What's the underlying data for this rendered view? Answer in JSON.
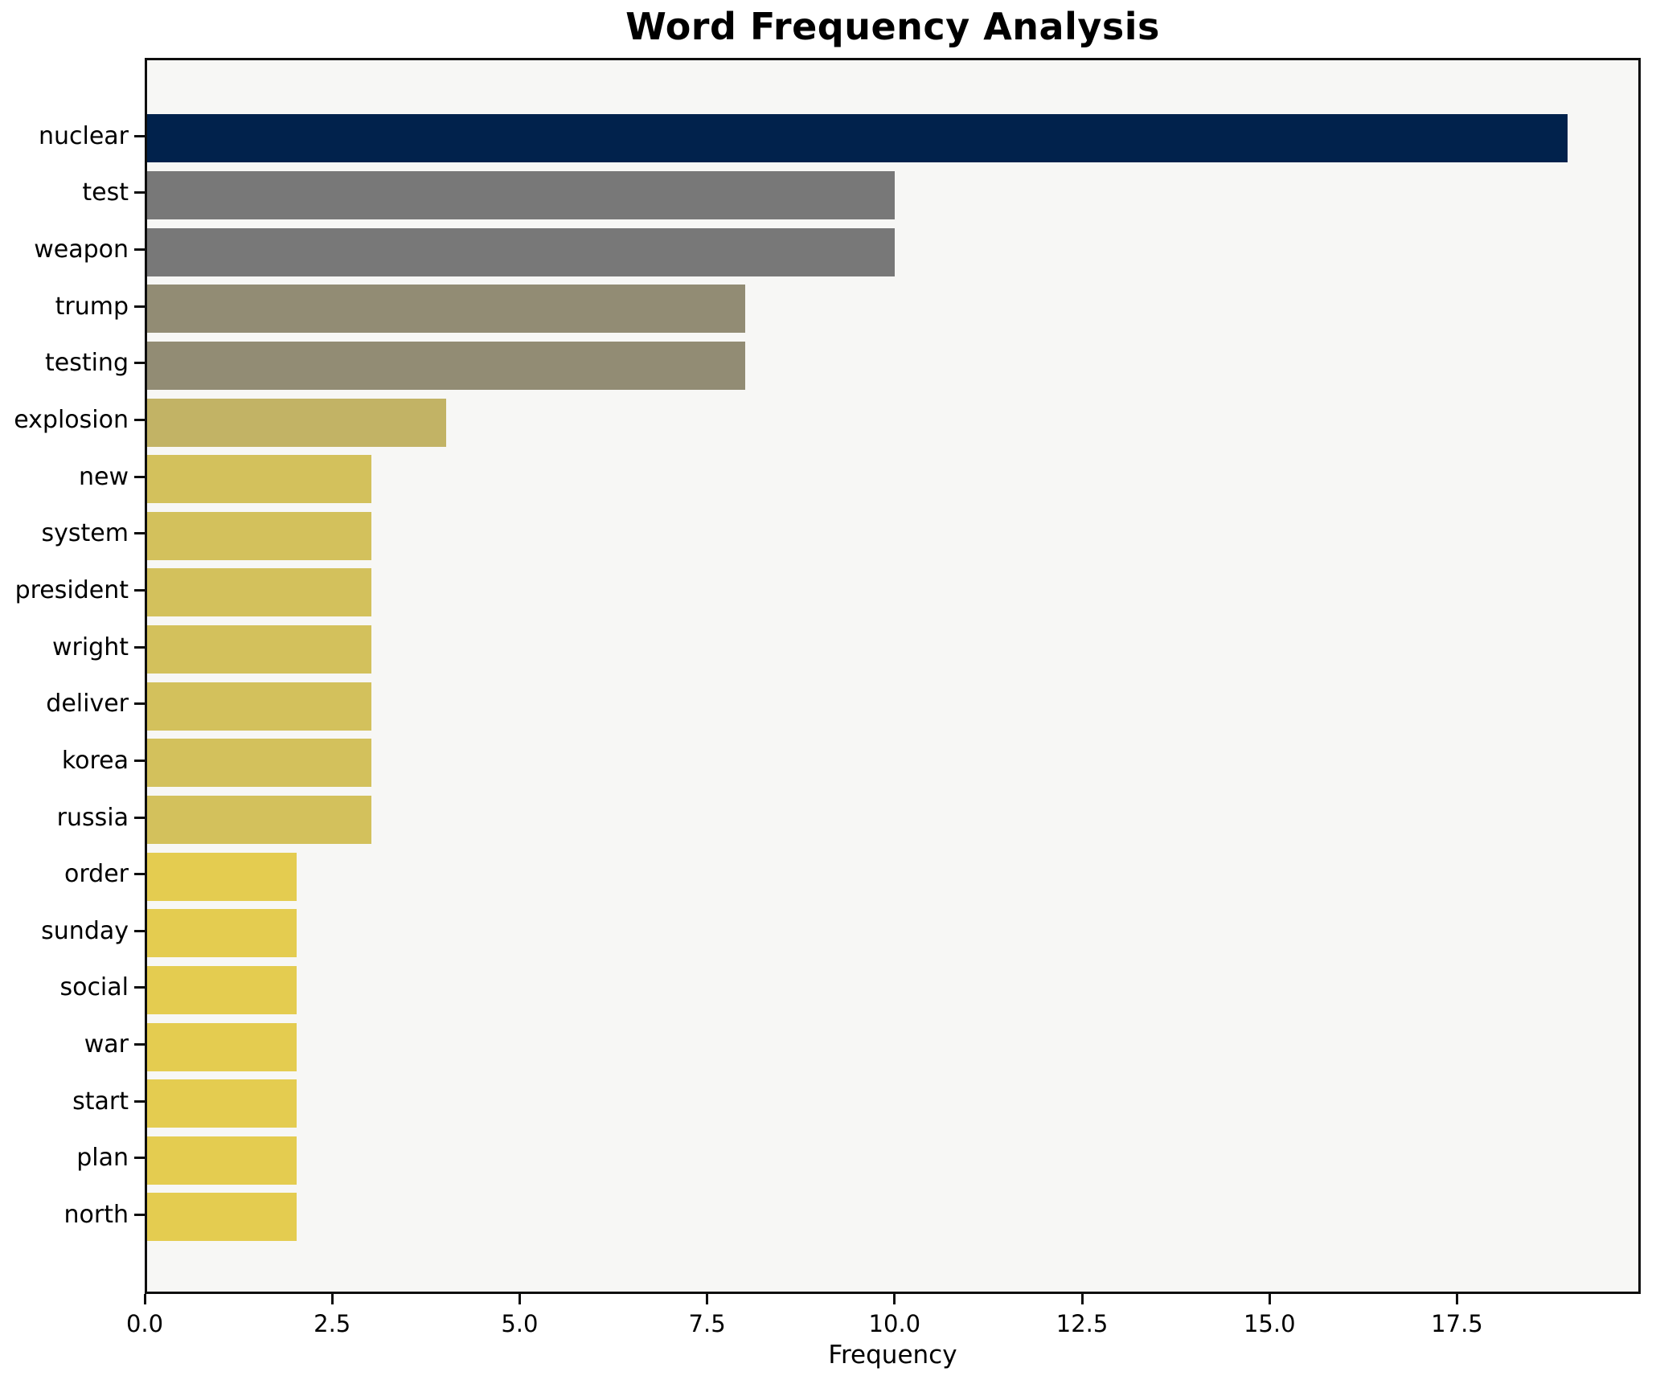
{
  "chart_data": {
    "type": "bar",
    "orientation": "horizontal",
    "title": "Word Frequency Analysis",
    "xlabel": "Frequency",
    "ylabel": "",
    "categories": [
      "nuclear",
      "test",
      "weapon",
      "trump",
      "testing",
      "explosion",
      "new",
      "system",
      "president",
      "wright",
      "deliver",
      "korea",
      "russia",
      "order",
      "sunday",
      "social",
      "war",
      "start",
      "plan",
      "north"
    ],
    "values": [
      19,
      10,
      10,
      8,
      8,
      4,
      3,
      3,
      3,
      3,
      3,
      3,
      3,
      2,
      2,
      2,
      2,
      2,
      2,
      2
    ],
    "bar_colors": [
      "#01224c",
      "#787878",
      "#787878",
      "#928c74",
      "#928c74",
      "#c2b365",
      "#d3c15c",
      "#d3c15c",
      "#d3c15c",
      "#d3c15c",
      "#d3c15c",
      "#d3c15c",
      "#d3c15c",
      "#e4cc50",
      "#e4cc50",
      "#e4cc50",
      "#e4cc50",
      "#e4cc50",
      "#e4cc50",
      "#e4cc50"
    ],
    "xlim": [
      0,
      19.95
    ],
    "xticks": [
      {
        "label": "0.0",
        "value": 0.0
      },
      {
        "label": "2.5",
        "value": 2.5
      },
      {
        "label": "5.0",
        "value": 5.0
      },
      {
        "label": "7.5",
        "value": 7.5
      },
      {
        "label": "10.0",
        "value": 10.0
      },
      {
        "label": "12.5",
        "value": 12.5
      },
      {
        "label": "15.0",
        "value": 15.0
      },
      {
        "label": "17.5",
        "value": 17.5
      }
    ],
    "grid": false,
    "legend": null,
    "styles": {
      "plot_bg": "#f7f7f5",
      "figure_bg": "#ffffff",
      "spine_color": "#0e0e0e",
      "text_color": "#000000"
    }
  }
}
